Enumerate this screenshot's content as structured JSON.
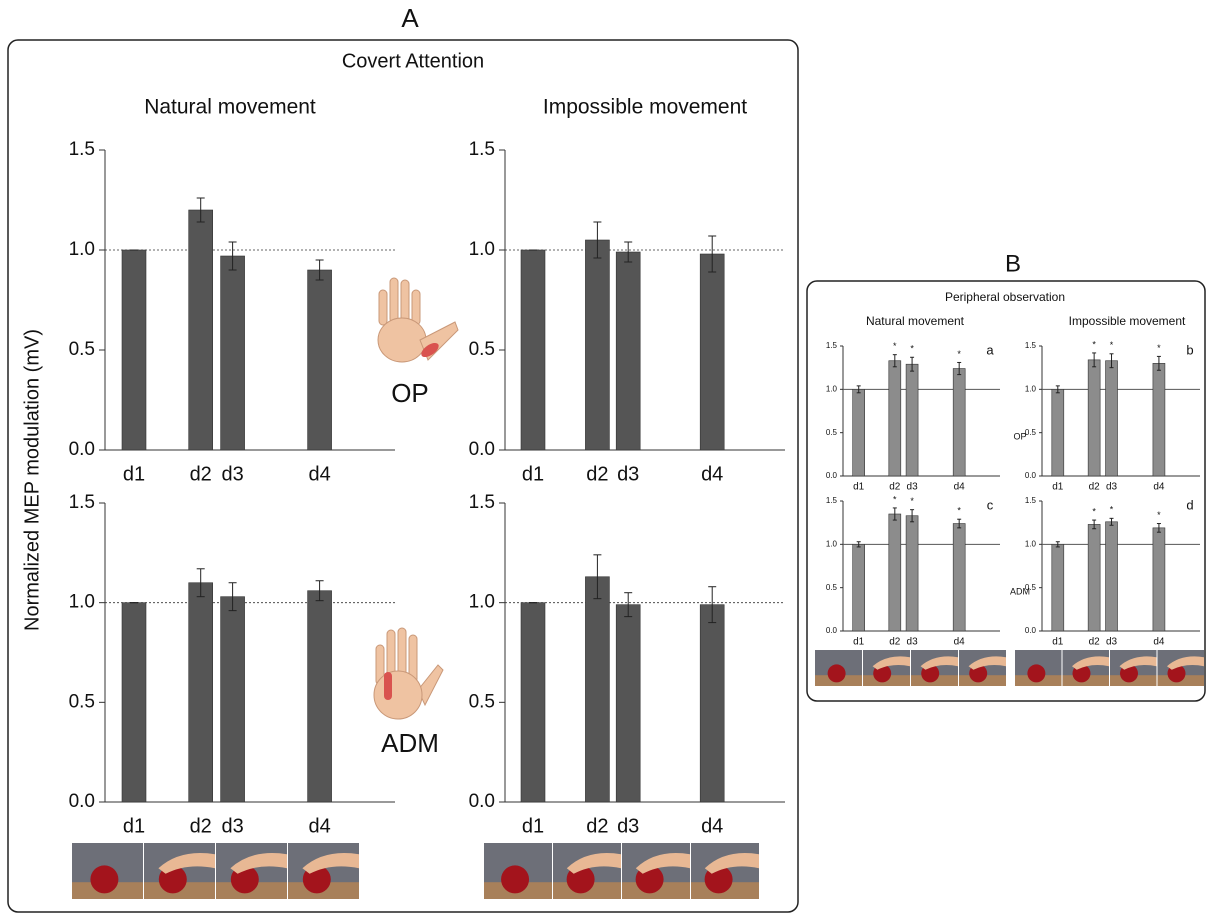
{
  "panel_a": {
    "letter": "A",
    "title": "Covert Attention",
    "columns": [
      "Natural movement",
      "Impossible movement"
    ],
    "rows": [
      "OP",
      "ADM"
    ],
    "y_label": "Normalized MEP modulation (mV)"
  },
  "panel_b": {
    "letter": "B",
    "title": "Peripheral observation",
    "columns": [
      "Natural movement",
      "Impossible movement"
    ],
    "rows": [
      "OP",
      "ADM"
    ]
  },
  "chart_data": [
    {
      "type": "bar",
      "categories": [
        "d1",
        "d2",
        "d3",
        "d4"
      ],
      "values": [
        1.0,
        1.2,
        0.97,
        0.9
      ],
      "errors": [
        0,
        0.06,
        0.07,
        0.05
      ],
      "color": "#555555",
      "reference_line": 1.0,
      "ylim": [
        0,
        1.5
      ],
      "yticks": [
        {
          "value": 0,
          "label": "0.0"
        },
        {
          "value": 0.5,
          "label": "0.5"
        },
        {
          "value": 1,
          "label": "1.0"
        },
        {
          "value": 1.5,
          "label": "1.5"
        }
      ]
    },
    {
      "type": "bar",
      "categories": [
        "d1",
        "d2",
        "d3",
        "d4"
      ],
      "values": [
        1.0,
        1.05,
        0.99,
        0.98
      ],
      "errors": [
        0,
        0.09,
        0.05,
        0.09
      ],
      "color": "#555555",
      "reference_line": 1.0,
      "ylim": [
        0,
        1.5
      ],
      "yticks": [
        {
          "value": 0,
          "label": "0.0"
        },
        {
          "value": 0.5,
          "label": "0.5"
        },
        {
          "value": 1,
          "label": "1.0"
        },
        {
          "value": 1.5,
          "label": "1.5"
        }
      ]
    },
    {
      "type": "bar",
      "categories": [
        "d1",
        "d2",
        "d3",
        "d4"
      ],
      "values": [
        1.0,
        1.1,
        1.03,
        1.06
      ],
      "errors": [
        0,
        0.07,
        0.07,
        0.05
      ],
      "color": "#555555",
      "reference_line": 1.0,
      "ylim": [
        0,
        1.5
      ],
      "yticks": [
        {
          "value": 0,
          "label": "0.0"
        },
        {
          "value": 0.5,
          "label": "0.5"
        },
        {
          "value": 1,
          "label": "1.0"
        },
        {
          "value": 1.5,
          "label": "1.5"
        }
      ]
    },
    {
      "type": "bar",
      "categories": [
        "d1",
        "d2",
        "d3",
        "d4"
      ],
      "values": [
        1.0,
        1.13,
        0.99,
        0.99
      ],
      "errors": [
        0,
        0.11,
        0.06,
        0.09
      ],
      "color": "#555555",
      "reference_line": 1.0,
      "ylim": [
        0,
        1.5
      ],
      "yticks": [
        {
          "value": 0,
          "label": "0.0"
        },
        {
          "value": 0.5,
          "label": "0.5"
        },
        {
          "value": 1,
          "label": "1.0"
        },
        {
          "value": 1.5,
          "label": "1.5"
        }
      ]
    },
    {
      "type": "bar",
      "label": "a",
      "categories": [
        "d1",
        "d2",
        "d3",
        "d4"
      ],
      "values": [
        1.0,
        1.33,
        1.29,
        1.24
      ],
      "errors": [
        0.04,
        0.07,
        0.08,
        0.07
      ],
      "significance": [
        null,
        "*",
        "*",
        "*"
      ],
      "color": "#8c8c8c",
      "reference_line": 1.0,
      "ylim": [
        0,
        1.5
      ],
      "yticks": [
        {
          "value": 0,
          "label": "0.0"
        },
        {
          "value": 0.5,
          "label": "0.5"
        },
        {
          "value": 1,
          "label": "1.0"
        },
        {
          "value": 1.5,
          "label": "1.5"
        }
      ]
    },
    {
      "type": "bar",
      "label": "b",
      "categories": [
        "d1",
        "d2",
        "d3",
        "d4"
      ],
      "values": [
        1.0,
        1.34,
        1.33,
        1.3
      ],
      "errors": [
        0.04,
        0.08,
        0.08,
        0.08
      ],
      "significance": [
        null,
        "*",
        "*",
        "*"
      ],
      "color": "#8c8c8c",
      "reference_line": 1.0,
      "ylim": [
        0,
        1.5
      ],
      "yticks": [
        {
          "value": 0,
          "label": "0.0"
        },
        {
          "value": 0.5,
          "label": "0.5"
        },
        {
          "value": 1,
          "label": "1.0"
        },
        {
          "value": 1.5,
          "label": "1.5"
        }
      ]
    },
    {
      "type": "bar",
      "label": "c",
      "categories": [
        "d1",
        "d2",
        "d3",
        "d4"
      ],
      "values": [
        1.0,
        1.35,
        1.33,
        1.24
      ],
      "errors": [
        0.03,
        0.07,
        0.07,
        0.05
      ],
      "significance": [
        null,
        "*",
        "*",
        "*"
      ],
      "color": "#8c8c8c",
      "reference_line": 1.0,
      "ylim": [
        0,
        1.5
      ],
      "yticks": [
        {
          "value": 0,
          "label": "0.0"
        },
        {
          "value": 0.5,
          "label": "0.5"
        },
        {
          "value": 1,
          "label": "1.0"
        },
        {
          "value": 1.5,
          "label": "1.5"
        }
      ]
    },
    {
      "type": "bar",
      "label": "d",
      "categories": [
        "d1",
        "d2",
        "d3",
        "d4"
      ],
      "values": [
        1.0,
        1.23,
        1.26,
        1.19
      ],
      "errors": [
        0.03,
        0.05,
        0.04,
        0.05
      ],
      "significance": [
        null,
        "*",
        "*",
        "*"
      ],
      "color": "#8c8c8c",
      "reference_line": 1.0,
      "ylim": [
        0,
        1.5
      ],
      "yticks": [
        {
          "value": 0,
          "label": "0.0"
        },
        {
          "value": 0.5,
          "label": "0.5"
        },
        {
          "value": 1,
          "label": "1.0"
        },
        {
          "value": 1.5,
          "label": "1.5"
        }
      ]
    }
  ]
}
